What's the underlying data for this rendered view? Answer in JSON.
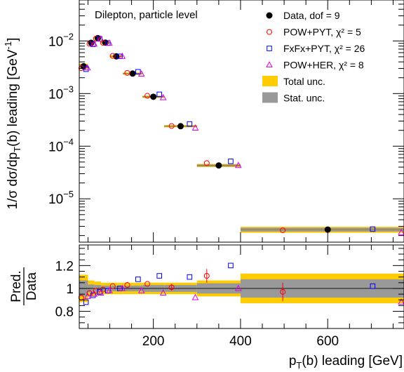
{
  "chart_data": {
    "type": "scatter",
    "panel_label": "Dilepton, particle level",
    "xlabel_main": "p",
    "xlabel_sub": "T",
    "xlabel_rest": "(b) leading [GeV]",
    "ylabel_main": "1/σ dσ/dp",
    "ylabel_sub": "T",
    "ylabel_mid": "(b) leading [GeV",
    "ylabel_sup": "-1",
    "ylabel_end": "]",
    "ratio_ylabel_num": "Pred.",
    "ratio_ylabel_den": "Data",
    "xlim": [
      30,
      775
    ],
    "ylim": [
      1.5e-06,
      0.06
    ],
    "yscale": "log",
    "ratio_ylim": [
      0.65,
      1.38
    ],
    "x_ticks": [
      "200",
      "400",
      "600"
    ],
    "y_ticks": [
      {
        "base": "10",
        "exp": "−2",
        "value": 0.01
      },
      {
        "base": "10",
        "exp": "−3",
        "value": 0.001
      },
      {
        "base": "10",
        "exp": "−4",
        "value": 0.0001
      },
      {
        "base": "10",
        "exp": "−5",
        "value": 1e-05
      }
    ],
    "ratio_y_ticks": [
      "0.8",
      "1",
      "1.2"
    ],
    "bins": [
      {
        "lo": 30,
        "hi": 50,
        "center": 40,
        "data": 0.0033,
        "total_unc": 0.12,
        "stat_unc": 0.07,
        "pow_pyt": 0.92,
        "fxfx_pyt": 0.88,
        "pow_her": 0.93
      },
      {
        "lo": 50,
        "hi": 65,
        "center": 57.5,
        "data": 0.0092,
        "total_unc": 0.07,
        "stat_unc": 0.035,
        "pow_pyt": 0.96,
        "fxfx_pyt": 0.94,
        "pow_her": 0.95
      },
      {
        "lo": 65,
        "hi": 80,
        "center": 72.5,
        "data": 0.0113,
        "total_unc": 0.06,
        "stat_unc": 0.03,
        "pow_pyt": 0.98,
        "fxfx_pyt": 0.97,
        "pow_her": 0.96
      },
      {
        "lo": 80,
        "hi": 100,
        "center": 90,
        "data": 0.0093,
        "total_unc": 0.05,
        "stat_unc": 0.025,
        "pow_pyt": 0.99,
        "fxfx_pyt": 0.98,
        "pow_her": 0.98
      },
      {
        "lo": 100,
        "hi": 130,
        "center": 115,
        "data": 0.0051,
        "total_unc": 0.05,
        "stat_unc": 0.025,
        "pow_pyt": 1.02,
        "fxfx_pyt": 1.0,
        "pow_her": 1.0
      },
      {
        "lo": 130,
        "hi": 175,
        "center": 152.5,
        "data": 0.0024,
        "total_unc": 0.05,
        "stat_unc": 0.025,
        "pow_pyt": 1.03,
        "fxfx_pyt": 1.08,
        "pow_her": 0.98
      },
      {
        "lo": 175,
        "hi": 225,
        "center": 200,
        "data": 0.00087,
        "total_unc": 0.05,
        "stat_unc": 0.03,
        "pow_pyt": 1.04,
        "fxfx_pyt": 1.11,
        "pow_her": 0.96
      },
      {
        "lo": 225,
        "hi": 300,
        "center": 262.5,
        "data": 0.00024,
        "total_unc": 0.05,
        "stat_unc": 0.03,
        "pow_pyt": 1.01,
        "fxfx_pyt": 1.1,
        "pow_her": 0.92
      },
      {
        "lo": 300,
        "hi": 400,
        "center": 350,
        "data": 4.3e-05,
        "total_unc": 0.07,
        "stat_unc": 0.045,
        "pow_pyt": 1.11,
        "fxfx_pyt": 1.2,
        "pow_her": 1.0
      },
      {
        "lo": 400,
        "hi": 775,
        "center": 600,
        "data": 2.6e-06,
        "total_unc": 0.13,
        "stat_unc": 0.08,
        "pow_pyt": 0.97,
        "fxfx_pyt": 1.02,
        "pow_her": 0.88
      }
    ],
    "model_x_offset": {
      "pow_pyt": -0.55,
      "fxfx_pyt": 0.55,
      "pow_her": 0.9
    },
    "pow_pyt_err": [
      0,
      0,
      0,
      0,
      0,
      0,
      0,
      0.03,
      0.06,
      0.08
    ],
    "series": [
      {
        "key": "data",
        "name": "Data, dof = 9",
        "color": "#000000",
        "marker": "circle-filled"
      },
      {
        "key": "pow_pyt",
        "name": "POW+PYT, χ² = 5",
        "color": "#ff0000",
        "marker": "circle-open"
      },
      {
        "key": "fxfx_pyt",
        "name": "FxFx+PYT, χ² = 26",
        "color": "#0000ff",
        "marker": "square-open"
      },
      {
        "key": "pow_her",
        "name": "POW+HER, χ² = 8",
        "color": "#e000e0",
        "marker": "triangle-open"
      }
    ],
    "bands": [
      {
        "key": "total",
        "name": "Total unc.",
        "color": "#ffcc00"
      },
      {
        "key": "stat",
        "name": "Stat. unc.",
        "color": "#999999"
      }
    ],
    "bin_line_color": "#a0884a",
    "legend_position": "top-right"
  }
}
